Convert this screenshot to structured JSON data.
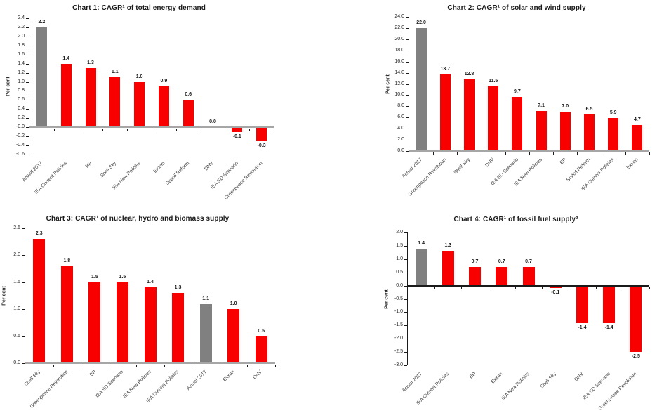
{
  "page": {
    "background": "#FFFFFF"
  },
  "colors": {
    "bar_red": "#F80000",
    "bar_actual_gray": "#808080",
    "baseline_gray": "#A6A6A6",
    "axis_line": "#1A1A1A",
    "title_text": "#1A1A1A",
    "tick_label_text": "#262626",
    "category_label_text": "#404040"
  },
  "chart_data": [
    {
      "type": "bar",
      "title": "Chart 1: CAGR¹ of total energy demand",
      "ylabel": "Per cent",
      "ylim": [
        -0.6,
        2.4
      ],
      "ytick_step": 0.2,
      "grid": false,
      "categories": [
        "Actual 2017",
        "IEA Current Policies",
        "BP",
        "Shell Sky",
        "IEA New Policies",
        "Exxon",
        "Statoil Reform",
        "DNV",
        "IEA SD Scenario",
        "Greenpeace Revolution"
      ],
      "values": [
        2.2,
        1.4,
        1.3,
        1.1,
        1.0,
        0.9,
        0.6,
        0.0,
        -0.1,
        -0.3
      ],
      "actual_index": 0,
      "baseline_color": "#A6A6A6"
    },
    {
      "type": "bar",
      "title": "Chart 2: CAGR¹ of solar and wind supply",
      "ylabel": "Per cent",
      "ylim": [
        0.0,
        24.0
      ],
      "ytick_step": 2.0,
      "grid": false,
      "categories": [
        "Actual 2017",
        "Greenpeace Revolution",
        "Shell Sky",
        "DNV",
        "IEA SD Scenario",
        "IEA New Policies",
        "BP",
        "Statoil Reform",
        "IEA Current Policies",
        "Exxon"
      ],
      "values": [
        22.0,
        13.7,
        12.8,
        11.5,
        9.7,
        7.1,
        7.0,
        6.5,
        5.9,
        4.7
      ],
      "actual_index": 0,
      "baseline_color": "#A6A6A6"
    },
    {
      "type": "bar",
      "title": "Chart 3: CAGR¹ of nuclear, hydro and biomass supply",
      "ylabel": "Per cent",
      "ylim": [
        0.0,
        2.5
      ],
      "ytick_step": 0.5,
      "grid": false,
      "categories": [
        "Shell Sky",
        "Greenpeace Revolution",
        "BP",
        "IEA SD Scenario",
        "IEA New Policies",
        "IEA Current Policies",
        "Actual 2017",
        "Exxon",
        "DNV"
      ],
      "values": [
        2.3,
        1.8,
        1.5,
        1.5,
        1.4,
        1.3,
        1.1,
        1.0,
        0.5
      ],
      "actual_index": 6,
      "baseline_color": "#A6A6A6"
    },
    {
      "type": "bar",
      "title": "Chart 4: CAGR¹ of fossil fuel supply²",
      "ylabel": "Per cent",
      "ylim": [
        -3.0,
        2.0
      ],
      "ytick_step": 0.5,
      "grid": false,
      "categories": [
        "Actual 2017",
        "IEA Current Policies",
        "BP",
        "Exxon",
        "IEA New Policies",
        "Shell Sky",
        "DNV",
        "IEA SD Scenario",
        "Greenpeace Revolution"
      ],
      "values": [
        1.4,
        1.3,
        0.7,
        0.7,
        0.7,
        -0.1,
        -1.4,
        -1.4,
        -2.5
      ],
      "actual_index": 0,
      "baseline_color": "#1A1A1A"
    }
  ]
}
